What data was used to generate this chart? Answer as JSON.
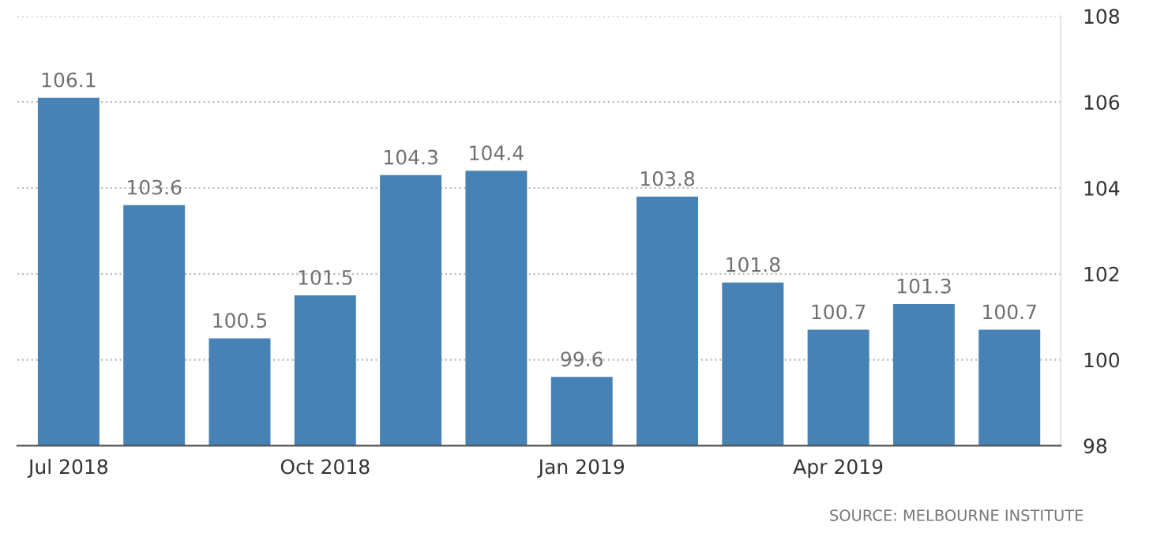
{
  "chart_data": {
    "type": "bar",
    "categories": [
      "Jul 2018",
      null,
      null,
      "Oct 2018",
      null,
      null,
      "Jan 2019",
      null,
      null,
      "Apr 2019",
      null,
      null
    ],
    "values": [
      106.1,
      103.6,
      100.5,
      101.5,
      104.3,
      104.4,
      99.6,
      103.8,
      101.8,
      100.7,
      101.3,
      100.7
    ],
    "color": "#4682b4",
    "ylim": [
      98,
      108
    ],
    "yticks": [
      98,
      100,
      102,
      104,
      106,
      108
    ],
    "grid": "y",
    "data_labels": true,
    "annotations": [
      "SOURCE: MELBOURNE INSTITUTE"
    ]
  }
}
